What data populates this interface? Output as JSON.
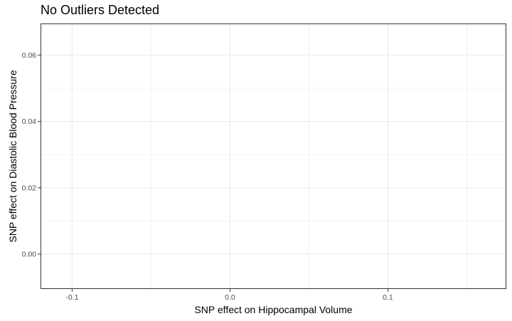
{
  "chart_data": {
    "type": "scatter",
    "title": "No Outliers Detected",
    "xlabel": "SNP effect on Hippocampal Volume",
    "ylabel": "SNP effect on Diastolic Blood Pressure",
    "xlim": [
      -0.12,
      0.175
    ],
    "ylim": [
      -0.0105,
      0.0695
    ],
    "x_ticks": [
      -0.1,
      0.0,
      0.1
    ],
    "x_tick_labels": [
      "-0.1",
      "0.0",
      "0.1"
    ],
    "x_minor_ticks": [
      -0.05,
      0.05,
      0.15
    ],
    "y_ticks": [
      0.0,
      0.02,
      0.04,
      0.06
    ],
    "y_tick_labels": [
      "0.00",
      "0.02",
      "0.04",
      "0.06"
    ],
    "y_minor_ticks": [
      0.01,
      0.03,
      0.05
    ],
    "points": [],
    "grid": true,
    "colors": {
      "grid": "#ebebeb",
      "panel_border": "#333333",
      "tick_text": "#4d4d4d"
    }
  }
}
